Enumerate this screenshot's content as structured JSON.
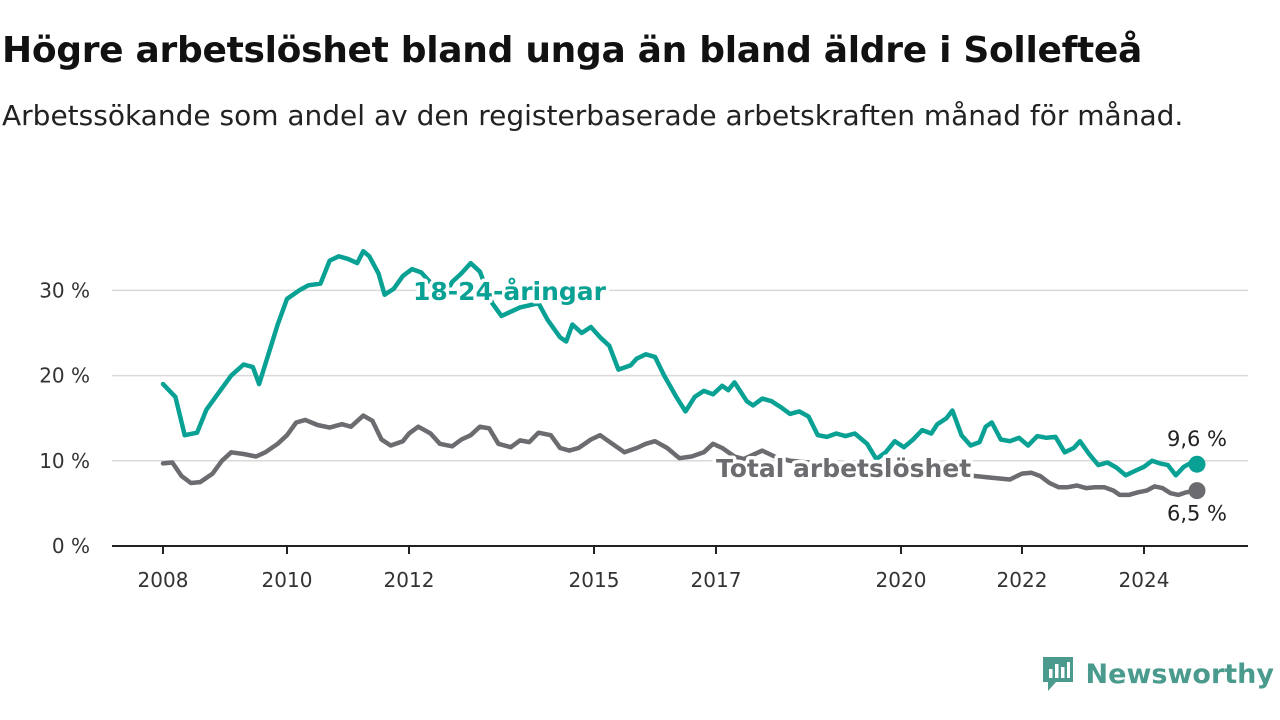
{
  "header": {
    "title": "Högre arbetslöshet bland unga än bland äldre i Sollefteå",
    "subtitle": "Arbetssökande som andel av den registerbaserade arbetskraften månad för månad."
  },
  "brand": {
    "name": "Newsworthy",
    "icon": "newsworthy-logo-icon"
  },
  "colors": {
    "youth": "#0aa195",
    "total": "#6b6b70",
    "grid": "#d9d9d9",
    "axis": "#222222",
    "brand": "#4a9a8e"
  },
  "chart_data": {
    "type": "line",
    "ylim": [
      0,
      40
    ],
    "yticks": [
      0,
      10,
      20,
      30
    ],
    "ytick_labels": [
      "0 %",
      "10 %",
      "20 %",
      "30 %"
    ],
    "xlim": [
      2008.0,
      2025.0
    ],
    "xticks": [
      2008,
      2010,
      2012,
      2015,
      2017,
      2020,
      2022,
      2024
    ],
    "xtick_labels": [
      "2008",
      "2010",
      "2012",
      "2015",
      "2017",
      "2020",
      "2022",
      "2024"
    ],
    "grid": true,
    "series": [
      {
        "name": "18-24-åringar",
        "key": "youth",
        "end_label": "9,6 %",
        "points": [
          [
            2008.0,
            19.0
          ],
          [
            2008.2,
            17.5
          ],
          [
            2008.35,
            13.0
          ],
          [
            2008.55,
            13.3
          ],
          [
            2008.7,
            16.0
          ],
          [
            2008.9,
            18.0
          ],
          [
            2009.1,
            20.0
          ],
          [
            2009.3,
            21.3
          ],
          [
            2009.45,
            21.0
          ],
          [
            2009.55,
            19.0
          ],
          [
            2009.7,
            22.5
          ],
          [
            2009.85,
            26.0
          ],
          [
            2010.0,
            29.0
          ],
          [
            2010.2,
            30.0
          ],
          [
            2010.35,
            30.6
          ],
          [
            2010.55,
            30.8
          ],
          [
            2010.7,
            33.5
          ],
          [
            2010.85,
            34.0
          ],
          [
            2011.0,
            33.7
          ],
          [
            2011.15,
            33.2
          ],
          [
            2011.25,
            34.6
          ],
          [
            2011.35,
            34.0
          ],
          [
            2011.5,
            32.0
          ],
          [
            2011.6,
            29.5
          ],
          [
            2011.75,
            30.2
          ],
          [
            2011.9,
            31.7
          ],
          [
            2012.05,
            32.5
          ],
          [
            2012.2,
            32.1
          ],
          [
            2012.4,
            30.5
          ],
          [
            2012.55,
            29.0
          ],
          [
            2012.7,
            31.0
          ],
          [
            2012.85,
            32.0
          ],
          [
            2013.0,
            33.2
          ],
          [
            2013.15,
            32.2
          ],
          [
            2013.35,
            28.5
          ],
          [
            2013.5,
            27.0
          ],
          [
            2013.8,
            28.0
          ],
          [
            2014.1,
            28.5
          ],
          [
            2014.25,
            26.5
          ],
          [
            2014.45,
            24.5
          ],
          [
            2014.55,
            24.0
          ],
          [
            2014.65,
            26.0
          ],
          [
            2014.8,
            25.0
          ],
          [
            2014.95,
            25.7
          ],
          [
            2015.1,
            24.5
          ],
          [
            2015.25,
            23.5
          ],
          [
            2015.4,
            20.7
          ],
          [
            2015.6,
            21.2
          ],
          [
            2015.7,
            22.0
          ],
          [
            2015.85,
            22.5
          ],
          [
            2016.0,
            22.2
          ],
          [
            2016.15,
            20.0
          ],
          [
            2016.35,
            17.5
          ],
          [
            2016.5,
            15.8
          ],
          [
            2016.65,
            17.5
          ],
          [
            2016.8,
            18.2
          ],
          [
            2016.95,
            17.8
          ],
          [
            2017.1,
            18.8
          ],
          [
            2017.2,
            18.3
          ],
          [
            2017.3,
            19.2
          ],
          [
            2017.5,
            17.0
          ],
          [
            2017.6,
            16.5
          ],
          [
            2017.75,
            17.3
          ],
          [
            2017.9,
            17.0
          ],
          [
            2018.05,
            16.3
          ],
          [
            2018.2,
            15.5
          ],
          [
            2018.35,
            15.8
          ],
          [
            2018.5,
            15.2
          ],
          [
            2018.65,
            13.0
          ],
          [
            2018.8,
            12.8
          ],
          [
            2018.95,
            13.2
          ],
          [
            2019.1,
            12.9
          ],
          [
            2019.25,
            13.2
          ],
          [
            2019.45,
            12.0
          ],
          [
            2019.6,
            10.2
          ],
          [
            2019.75,
            11.0
          ],
          [
            2019.9,
            12.3
          ],
          [
            2020.05,
            11.6
          ],
          [
            2020.2,
            12.5
          ],
          [
            2020.35,
            13.6
          ],
          [
            2020.5,
            13.2
          ],
          [
            2020.6,
            14.3
          ],
          [
            2020.75,
            15.0
          ],
          [
            2020.85,
            15.9
          ],
          [
            2021.0,
            13.0
          ],
          [
            2021.15,
            11.8
          ],
          [
            2021.3,
            12.2
          ],
          [
            2021.4,
            14.0
          ],
          [
            2021.5,
            14.5
          ],
          [
            2021.65,
            12.5
          ],
          [
            2021.8,
            12.3
          ],
          [
            2021.95,
            12.7
          ],
          [
            2022.1,
            11.8
          ],
          [
            2022.25,
            12.9
          ],
          [
            2022.4,
            12.7
          ],
          [
            2022.55,
            12.8
          ],
          [
            2022.7,
            11.0
          ],
          [
            2022.85,
            11.5
          ],
          [
            2022.95,
            12.3
          ],
          [
            2023.1,
            10.8
          ],
          [
            2023.25,
            9.5
          ],
          [
            2023.4,
            9.8
          ],
          [
            2023.55,
            9.2
          ],
          [
            2023.7,
            8.3
          ],
          [
            2023.85,
            8.8
          ],
          [
            2024.0,
            9.3
          ],
          [
            2024.15,
            10.0
          ],
          [
            2024.3,
            9.7
          ],
          [
            2024.45,
            9.5
          ],
          [
            2024.6,
            8.3
          ],
          [
            2024.75,
            9.3
          ],
          [
            2024.9,
            9.8
          ],
          [
            2025.0,
            9.6
          ]
        ]
      },
      {
        "name": "Total arbetslöshet",
        "key": "total",
        "end_label": "6,5 %",
        "points": [
          [
            2008.0,
            9.7
          ],
          [
            2008.15,
            9.8
          ],
          [
            2008.3,
            8.2
          ],
          [
            2008.45,
            7.4
          ],
          [
            2008.6,
            7.5
          ],
          [
            2008.8,
            8.5
          ],
          [
            2008.95,
            10.0
          ],
          [
            2009.1,
            11.0
          ],
          [
            2009.3,
            10.8
          ],
          [
            2009.5,
            10.5
          ],
          [
            2009.65,
            11.0
          ],
          [
            2009.85,
            12.0
          ],
          [
            2010.0,
            13.0
          ],
          [
            2010.15,
            14.5
          ],
          [
            2010.3,
            14.8
          ],
          [
            2010.5,
            14.2
          ],
          [
            2010.7,
            13.9
          ],
          [
            2010.9,
            14.3
          ],
          [
            2011.05,
            14.0
          ],
          [
            2011.25,
            15.3
          ],
          [
            2011.4,
            14.7
          ],
          [
            2011.55,
            12.5
          ],
          [
            2011.7,
            11.8
          ],
          [
            2011.9,
            12.3
          ],
          [
            2012.0,
            13.2
          ],
          [
            2012.15,
            14.0
          ],
          [
            2012.35,
            13.2
          ],
          [
            2012.5,
            12.0
          ],
          [
            2012.7,
            11.7
          ],
          [
            2012.85,
            12.5
          ],
          [
            2013.0,
            13.0
          ],
          [
            2013.15,
            14.0
          ],
          [
            2013.3,
            13.8
          ],
          [
            2013.45,
            12.0
          ],
          [
            2013.65,
            11.6
          ],
          [
            2013.8,
            12.4
          ],
          [
            2013.95,
            12.2
          ],
          [
            2014.1,
            13.3
          ],
          [
            2014.3,
            13.0
          ],
          [
            2014.45,
            11.5
          ],
          [
            2014.6,
            11.2
          ],
          [
            2014.75,
            11.5
          ],
          [
            2014.95,
            12.5
          ],
          [
            2015.1,
            13.0
          ],
          [
            2015.3,
            12.0
          ],
          [
            2015.5,
            11.0
          ],
          [
            2015.7,
            11.5
          ],
          [
            2015.85,
            12.0
          ],
          [
            2016.0,
            12.3
          ],
          [
            2016.2,
            11.5
          ],
          [
            2016.4,
            10.3
          ],
          [
            2016.6,
            10.5
          ],
          [
            2016.8,
            11.0
          ],
          [
            2016.95,
            12.0
          ],
          [
            2017.1,
            11.5
          ],
          [
            2017.3,
            10.5
          ],
          [
            2017.45,
            10.2
          ],
          [
            2017.6,
            10.7
          ],
          [
            2017.75,
            11.2
          ],
          [
            2017.95,
            10.5
          ],
          [
            2018.2,
            10.0
          ],
          [
            2018.5,
            9.8
          ],
          [
            2018.8,
            9.5
          ],
          [
            2019.1,
            9.2
          ],
          [
            2019.5,
            9.0
          ],
          [
            2019.9,
            8.8
          ],
          [
            2020.3,
            8.6
          ],
          [
            2020.7,
            8.5
          ],
          [
            2021.1,
            8.3
          ],
          [
            2021.5,
            8.0
          ],
          [
            2021.8,
            7.8
          ],
          [
            2022.0,
            8.5
          ],
          [
            2022.15,
            8.6
          ],
          [
            2022.3,
            8.2
          ],
          [
            2022.45,
            7.4
          ],
          [
            2022.6,
            6.9
          ],
          [
            2022.75,
            6.9
          ],
          [
            2022.9,
            7.1
          ],
          [
            2023.05,
            6.8
          ],
          [
            2023.2,
            6.9
          ],
          [
            2023.35,
            6.9
          ],
          [
            2023.5,
            6.5
          ],
          [
            2023.6,
            6.0
          ],
          [
            2023.75,
            6.0
          ],
          [
            2023.9,
            6.3
          ],
          [
            2024.05,
            6.5
          ],
          [
            2024.2,
            7.0
          ],
          [
            2024.35,
            6.8
          ],
          [
            2024.5,
            6.2
          ],
          [
            2024.65,
            6.0
          ],
          [
            2024.8,
            6.3
          ],
          [
            2024.9,
            6.4
          ],
          [
            2025.0,
            6.5
          ]
        ]
      }
    ]
  }
}
